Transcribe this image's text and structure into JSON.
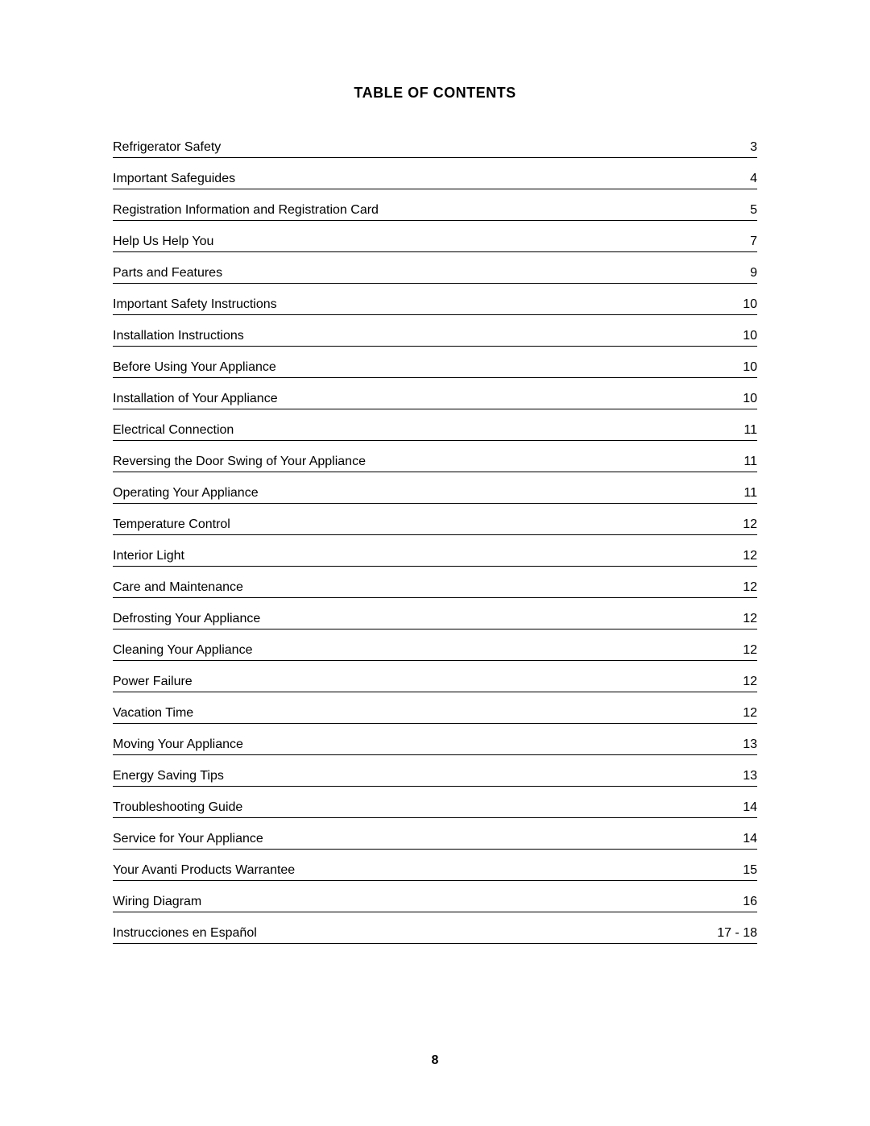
{
  "heading": "TABLE OF CONTENTS",
  "page_number": "8",
  "text_color": "#000000",
  "background_color": "#ffffff",
  "border_color": "#000000",
  "title_fontsize": 18,
  "row_fontsize": 16,
  "entries": [
    {
      "title": "Refrigerator Safety",
      "page": "3"
    },
    {
      "title": "Important Safeguides",
      "page": "4"
    },
    {
      "title": "Registration Information and Registration Card",
      "page": "5"
    },
    {
      "title": "Help Us Help You",
      "page": "7"
    },
    {
      "title": "Parts and Features",
      "page": "9"
    },
    {
      "title": "Important Safety Instructions",
      "page": "10"
    },
    {
      "title": "Installation Instructions",
      "page": "10"
    },
    {
      "title": "Before Using Your Appliance",
      "page": "10"
    },
    {
      "title": "Installation of Your Appliance",
      "page": "10"
    },
    {
      "title": "Electrical Connection",
      "page": "11"
    },
    {
      "title": "Reversing the Door Swing of Your Appliance",
      "page": "11"
    },
    {
      "title": "Operating Your Appliance",
      "page": "11"
    },
    {
      "title": "Temperature Control",
      "page": "12"
    },
    {
      "title": "Interior Light",
      "page": "12"
    },
    {
      "title": "Care and Maintenance",
      "page": "12"
    },
    {
      "title": "Defrosting Your Appliance",
      "page": "12"
    },
    {
      "title": "Cleaning Your Appliance",
      "page": "12"
    },
    {
      "title": "Power Failure",
      "page": "12"
    },
    {
      "title": "Vacation Time",
      "page": "12"
    },
    {
      "title": "Moving Your Appliance",
      "page": "13"
    },
    {
      "title": "Energy Saving Tips",
      "page": "13"
    },
    {
      "title": "Troubleshooting Guide",
      "page": "14"
    },
    {
      "title": "Service for Your Appliance",
      "page": "14"
    },
    {
      "title": "Your Avanti Products Warrantee",
      "page": "15"
    },
    {
      "title": "Wiring Diagram",
      "page": "16"
    },
    {
      "title": "Instrucciones en Español",
      "page": "17 - 18"
    }
  ]
}
